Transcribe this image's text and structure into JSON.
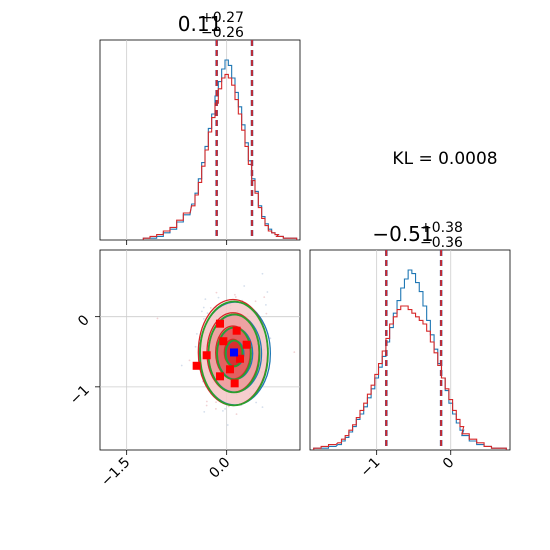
{
  "chart_data": {
    "type": "corner",
    "kl_text": "KL = 0.0008",
    "colors": {
      "blue": "#1f77b4",
      "red": "#d62728",
      "green": "#2ca02c",
      "dashed": "#d62728",
      "marker": "#0000ff",
      "grid": "#cccccc"
    },
    "param1": {
      "title_main": "0.11",
      "title_sup": "+0.27",
      "title_sub": "−0.26",
      "median": 0.11,
      "lo": -0.15,
      "hi": 0.38,
      "xlim": [
        -1.9,
        1.1
      ],
      "ticks": [
        -1.5,
        0.0
      ],
      "tick_labels": [
        "−1.5",
        "0.0"
      ],
      "gridlines": [
        -1.5,
        0.0
      ],
      "hist_centers": [
        -1.2,
        -1.1,
        -1.0,
        -0.9,
        -0.8,
        -0.7,
        -0.6,
        -0.5,
        -0.45,
        -0.4,
        -0.35,
        -0.3,
        -0.25,
        -0.2,
        -0.15,
        -0.1,
        -0.05,
        0.0,
        0.05,
        0.1,
        0.15,
        0.2,
        0.25,
        0.3,
        0.35,
        0.4,
        0.45,
        0.5,
        0.55,
        0.6,
        0.65,
        0.7,
        0.75,
        0.8,
        0.9,
        1.0
      ],
      "hist_blue": [
        0.01,
        0.01,
        0.02,
        0.04,
        0.06,
        0.1,
        0.14,
        0.2,
        0.26,
        0.34,
        0.43,
        0.52,
        0.62,
        0.7,
        0.8,
        0.88,
        0.95,
        1.0,
        0.97,
        0.9,
        0.82,
        0.74,
        0.64,
        0.54,
        0.44,
        0.34,
        0.27,
        0.19,
        0.13,
        0.09,
        0.06,
        0.04,
        0.03,
        0.02,
        0.01,
        0.01
      ],
      "hist_red": [
        0.01,
        0.02,
        0.03,
        0.05,
        0.07,
        0.11,
        0.15,
        0.19,
        0.25,
        0.32,
        0.41,
        0.5,
        0.6,
        0.68,
        0.76,
        0.84,
        0.9,
        0.92,
        0.9,
        0.86,
        0.78,
        0.7,
        0.61,
        0.52,
        0.42,
        0.33,
        0.26,
        0.18,
        0.12,
        0.08,
        0.05,
        0.04,
        0.03,
        0.02,
        0.01,
        0.01
      ]
    },
    "param2": {
      "title_main": "−0.51",
      "title_sup": "+0.38",
      "title_sub": "−0.36",
      "median": -0.51,
      "lo": -0.87,
      "hi": -0.13,
      "xlim": [
        -1.9,
        0.8
      ],
      "ticks": [
        -1,
        0
      ],
      "tick_labels": [
        "−1",
        "0"
      ],
      "gridlines": [
        -1,
        0
      ],
      "hist_centers": [
        -1.8,
        -1.7,
        -1.6,
        -1.5,
        -1.45,
        -1.4,
        -1.35,
        -1.3,
        -1.25,
        -1.2,
        -1.15,
        -1.1,
        -1.05,
        -1.0,
        -0.95,
        -0.9,
        -0.85,
        -0.8,
        -0.75,
        -0.7,
        -0.65,
        -0.6,
        -0.55,
        -0.5,
        -0.45,
        -0.4,
        -0.35,
        -0.3,
        -0.25,
        -0.2,
        -0.15,
        -0.1,
        -0.05,
        0.0,
        0.05,
        0.1,
        0.15,
        0.2,
        0.3,
        0.4,
        0.5,
        0.6,
        0.7
      ],
      "hist_blue": [
        0.01,
        0.01,
        0.02,
        0.03,
        0.05,
        0.07,
        0.1,
        0.13,
        0.17,
        0.2,
        0.24,
        0.29,
        0.34,
        0.4,
        0.46,
        0.52,
        0.6,
        0.68,
        0.76,
        0.83,
        0.9,
        0.95,
        1.0,
        0.98,
        0.93,
        0.88,
        0.8,
        0.72,
        0.64,
        0.56,
        0.48,
        0.4,
        0.33,
        0.26,
        0.2,
        0.15,
        0.11,
        0.08,
        0.05,
        0.03,
        0.02,
        0.01,
        0.01
      ],
      "hist_red": [
        0.01,
        0.02,
        0.03,
        0.04,
        0.06,
        0.08,
        0.11,
        0.14,
        0.18,
        0.22,
        0.26,
        0.31,
        0.36,
        0.42,
        0.48,
        0.55,
        0.62,
        0.7,
        0.74,
        0.78,
        0.8,
        0.8,
        0.78,
        0.76,
        0.74,
        0.72,
        0.7,
        0.66,
        0.6,
        0.54,
        0.47,
        0.4,
        0.34,
        0.28,
        0.22,
        0.17,
        0.13,
        0.09,
        0.06,
        0.04,
        0.02,
        0.01,
        0.01
      ]
    },
    "scatter2d": {
      "center": [
        0.11,
        -0.51
      ],
      "sigma": [
        0.26,
        0.37
      ],
      "blue_marker": [
        0.11,
        -0.51
      ],
      "red_squares": [
        [
          -0.1,
          -0.1
        ],
        [
          0.15,
          -0.2
        ],
        [
          -0.05,
          -0.35
        ],
        [
          0.2,
          -0.6
        ],
        [
          -0.3,
          -0.55
        ],
        [
          0.05,
          -0.75
        ],
        [
          -0.1,
          -0.85
        ],
        [
          0.3,
          -0.4
        ],
        [
          -0.45,
          -0.7
        ],
        [
          0.12,
          -0.95
        ]
      ],
      "contour_levels": [
        0.5,
        1.0,
        1.5,
        2.0
      ]
    }
  }
}
